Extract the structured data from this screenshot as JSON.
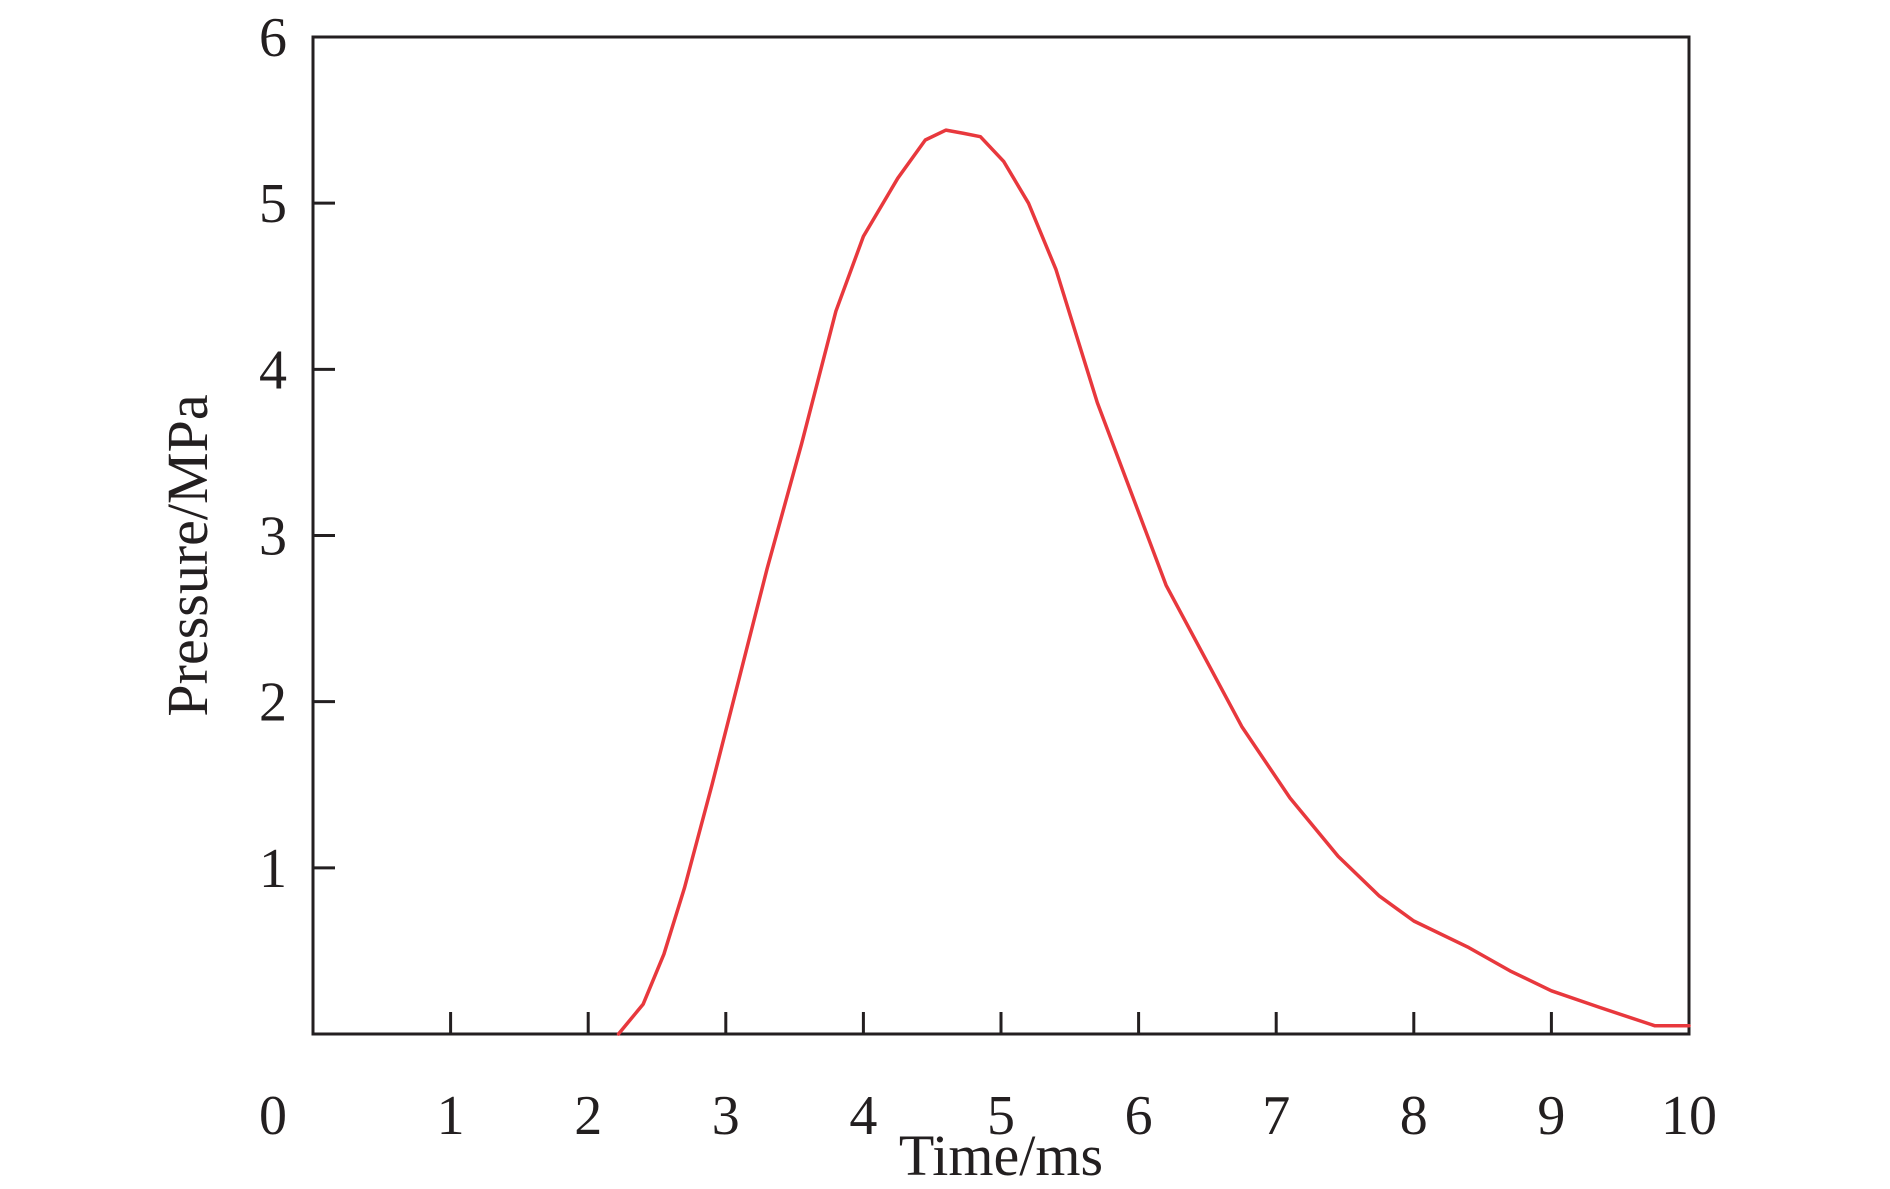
{
  "chart_data": {
    "type": "line",
    "title": "",
    "xlabel": "Time/ms",
    "ylabel": "Pressure/MPa",
    "xlim": [
      0,
      10
    ],
    "ylim": [
      0,
      6
    ],
    "x_ticks": [
      1,
      2,
      3,
      4,
      5,
      6,
      7,
      8,
      9,
      10
    ],
    "y_ticks": [
      1,
      2,
      3,
      4,
      5,
      6
    ],
    "origin_label": "0",
    "grid": false,
    "legend": "none",
    "series": [
      {
        "color": "#e8383d",
        "x": [
          2.22,
          2.4,
          2.55,
          2.7,
          2.9,
          3.1,
          3.3,
          3.55,
          3.8,
          4.0,
          4.25,
          4.45,
          4.6,
          4.73,
          4.85,
          5.02,
          5.2,
          5.4,
          5.7,
          6.2,
          6.75,
          7.1,
          7.45,
          7.75,
          8.0,
          8.4,
          8.7,
          9.0,
          9.35,
          9.75,
          10.0
        ],
        "values": [
          0.0,
          0.18,
          0.48,
          0.88,
          1.5,
          2.15,
          2.8,
          3.55,
          4.35,
          4.8,
          5.15,
          5.38,
          5.44,
          5.42,
          5.4,
          5.25,
          5.0,
          4.6,
          3.8,
          2.7,
          1.85,
          1.42,
          1.07,
          0.83,
          0.68,
          0.52,
          0.38,
          0.26,
          0.16,
          0.05,
          0.05
        ]
      }
    ]
  }
}
